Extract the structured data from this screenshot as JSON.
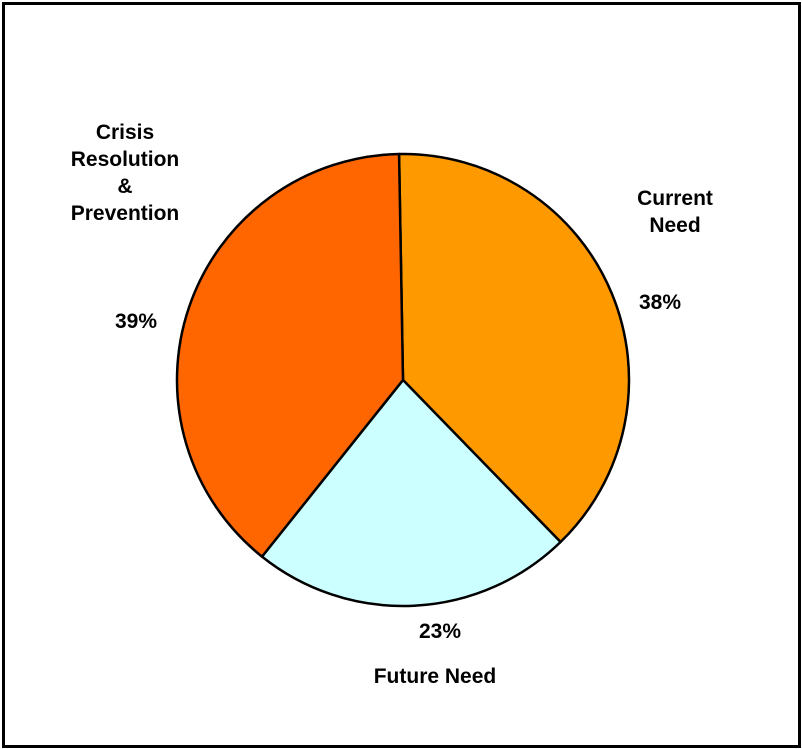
{
  "chart_data": {
    "type": "pie",
    "title": "",
    "slices": [
      {
        "label": "Current Need",
        "value": 38,
        "value_label": "38%",
        "color": "#FF9900"
      },
      {
        "label": "Future Need",
        "value": 23,
        "value_label": "23%",
        "color": "#CCFFFF"
      },
      {
        "label": "Crisis Resolution & Prevention",
        "value": 39,
        "value_label": "39%",
        "color": "#FF6600"
      }
    ],
    "category_labels": {
      "current": [
        "Current",
        "Need"
      ],
      "future": [
        "Future Need"
      ],
      "crisis": [
        "Crisis",
        "Resolution",
        "&",
        "Prevention"
      ]
    },
    "start_angle_deg": -1,
    "legend": "none"
  }
}
